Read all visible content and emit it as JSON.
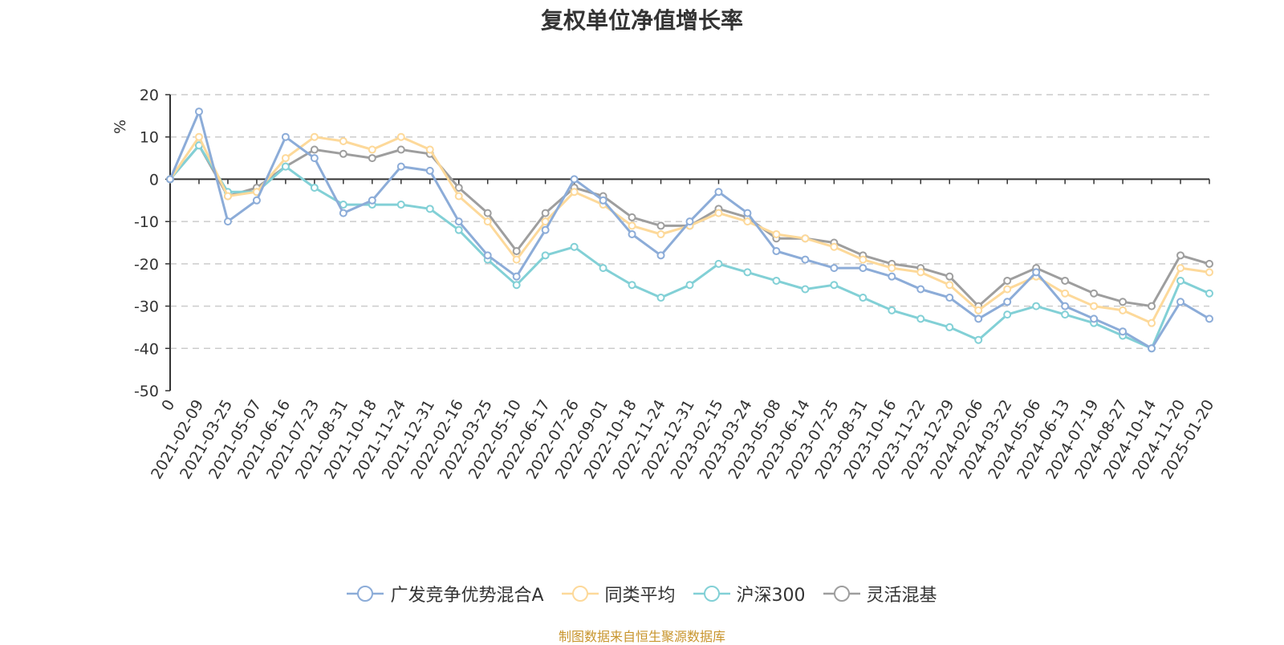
{
  "title": "复权单位净值增长率",
  "source": "制图数据来自恒生聚源数据库",
  "chart_data": {
    "type": "line",
    "ylabel": "%",
    "ylim": [
      -50,
      20
    ],
    "yticks": [
      20,
      10,
      0,
      -10,
      -20,
      -30,
      -40,
      -50
    ],
    "grid": true,
    "legend_position": "bottom",
    "categories": [
      "0",
      "2021-02-09",
      "2021-03-25",
      "2021-05-07",
      "2021-06-16",
      "2021-07-23",
      "2021-08-31",
      "2021-10-18",
      "2021-11-24",
      "2021-12-31",
      "2022-02-16",
      "2022-03-25",
      "2022-05-10",
      "2022-06-17",
      "2022-07-26",
      "2022-09-01",
      "2022-10-18",
      "2022-11-24",
      "2022-12-31",
      "2023-02-15",
      "2023-03-24",
      "2023-05-08",
      "2023-06-14",
      "2023-07-25",
      "2023-08-31",
      "2023-10-16",
      "2023-11-22",
      "2023-12-29",
      "2024-02-06",
      "2024-03-22",
      "2024-05-06",
      "2024-06-13",
      "2024-07-19",
      "2024-08-27",
      "2024-10-14",
      "2024-11-20",
      "2025-01-20"
    ],
    "series": [
      {
        "name": "广发竞争优势混合A",
        "color": "#8cacd8",
        "values": [
          0,
          16,
          -10,
          -5,
          10,
          5,
          -8,
          -5,
          3,
          2,
          -10,
          -18,
          -23,
          -12,
          0,
          -5,
          -13,
          -18,
          -10,
          -3,
          -8,
          -17,
          -19,
          -21,
          -21,
          -23,
          -26,
          -28,
          -33,
          -29,
          -22,
          -30,
          -33,
          -36,
          -40,
          -29,
          -33
        ]
      },
      {
        "name": "同类平均",
        "color": "#fdd99a",
        "values": [
          0,
          10,
          -4,
          -3,
          5,
          10,
          9,
          7,
          10,
          7,
          -4,
          -10,
          -19,
          -10,
          -3,
          -6,
          -11,
          -13,
          -11,
          -8,
          -10,
          -13,
          -14,
          -16,
          -19,
          -21,
          -22,
          -25,
          -31,
          -26,
          -23,
          -27,
          -30,
          -31,
          -34,
          -21,
          -22
        ]
      },
      {
        "name": "沪深300",
        "color": "#82d0d6",
        "values": [
          0,
          8,
          -3,
          -3,
          3,
          -2,
          -6,
          -6,
          -6,
          -7,
          -12,
          -19,
          -25,
          -18,
          -16,
          -21,
          -25,
          -28,
          -25,
          -20,
          -22,
          -24,
          -26,
          -25,
          -28,
          -31,
          -33,
          -35,
          -38,
          -32,
          -30,
          -32,
          -34,
          -37,
          -40,
          -24,
          -27
        ]
      },
      {
        "name": "灵活混基",
        "color": "#9e9e9e",
        "values": [
          0,
          8,
          -4,
          -2,
          3,
          7,
          6,
          5,
          7,
          6,
          -2,
          -8,
          -17,
          -8,
          -2,
          -4,
          -9,
          -11,
          -11,
          -7,
          -9,
          -14,
          -14,
          -15,
          -18,
          -20,
          -21,
          -23,
          -30,
          -24,
          -21,
          -24,
          -27,
          -29,
          -30,
          -18,
          -20
        ]
      }
    ]
  }
}
